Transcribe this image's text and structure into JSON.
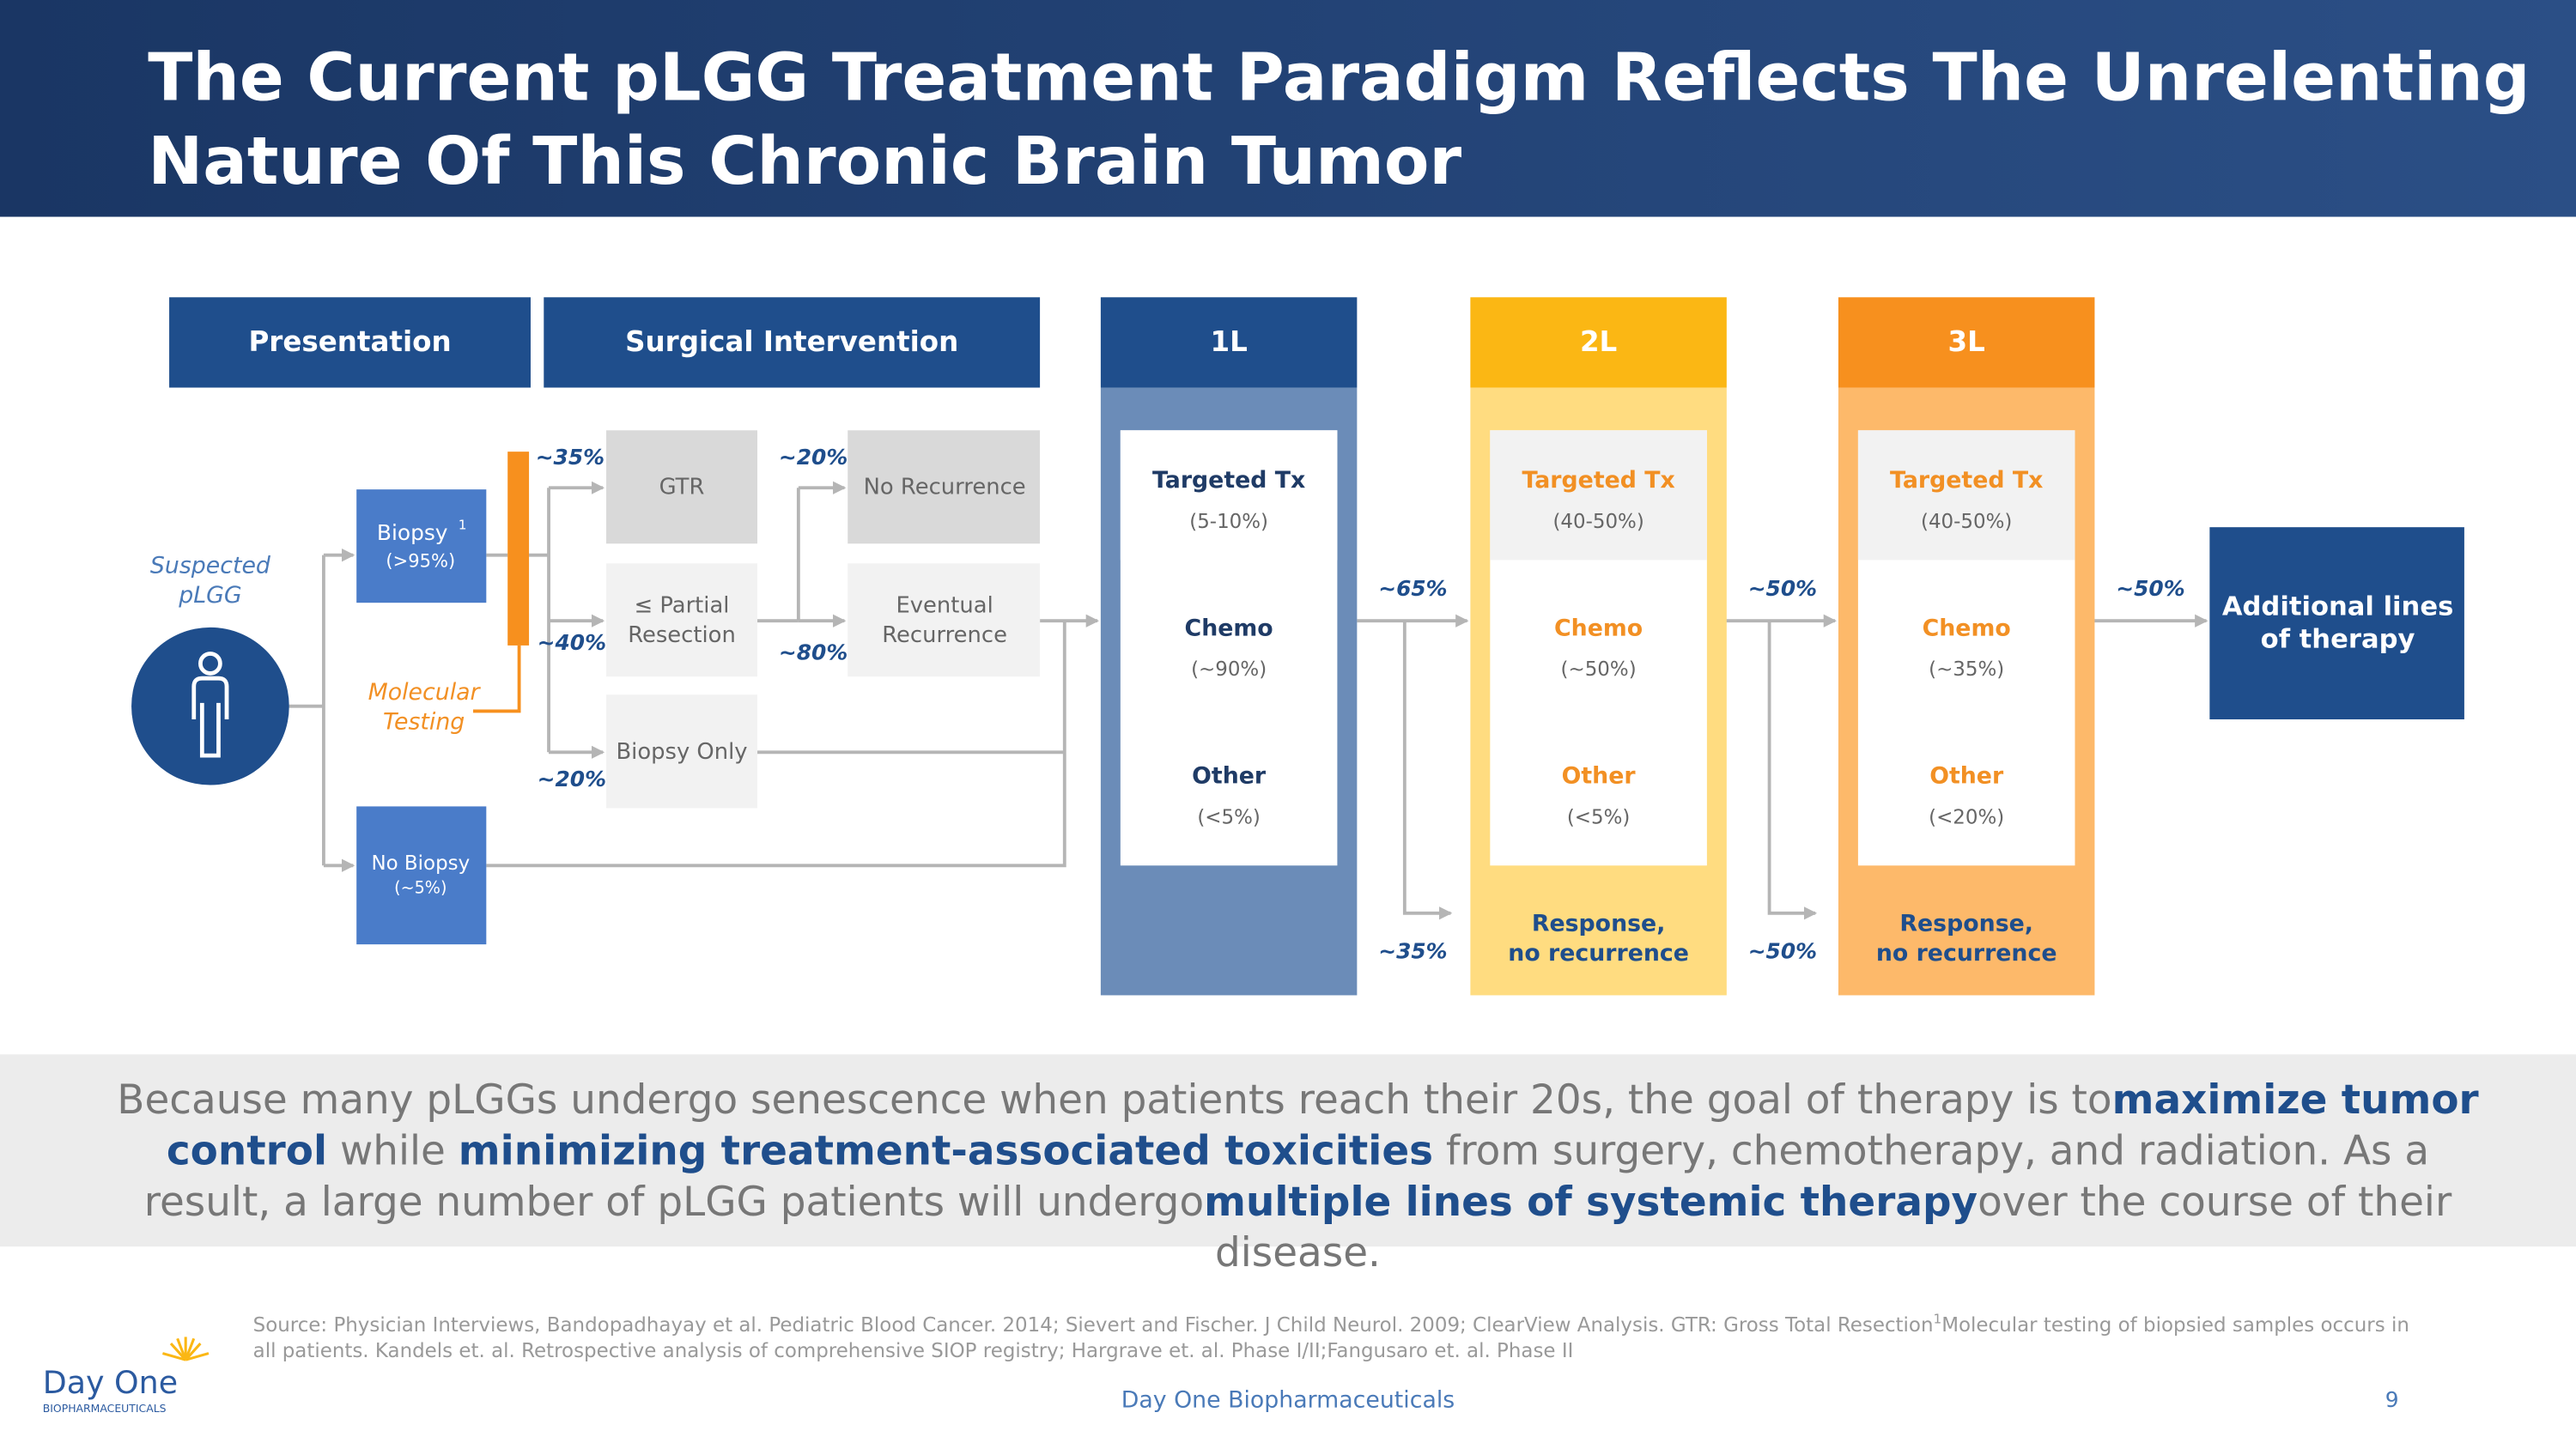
{
  "header": {
    "title_lines": [
      "The Current pLGG Treatment Paradigm Reflects The Unrelenting",
      "Nature Of This Chronic Brain Tumor"
    ]
  },
  "columns": {
    "presentation": "Presentation",
    "surgical": "Surgical Intervention"
  },
  "presentation": {
    "suspected": [
      "Suspected",
      "pLGG"
    ],
    "biopsy": {
      "label": "Biopsy",
      "footnote": "1",
      "share": "(>95%)"
    },
    "no_biopsy": {
      "label": "No Biopsy",
      "share": "(~5%)"
    },
    "molecular_testing": [
      "Molecular",
      "Testing"
    ]
  },
  "surgery": {
    "gtr": "GTR",
    "partial": [
      "≤ Partial",
      "Resection"
    ],
    "biopsy_only": "Biopsy Only",
    "no_recurrence": "No Recurrence",
    "eventual": [
      "Eventual",
      "Recurrence"
    ],
    "pct_gtr": "~35%",
    "pct_partial": "~40%",
    "pct_biopsy_only": "~20%",
    "pct_no_recurrence": "~20%",
    "pct_eventual": "~80%"
  },
  "lines": [
    {
      "header": "1L",
      "therapies": [
        {
          "name": "Targeted Tx",
          "share": "(5-10%)"
        },
        {
          "name": "Chemo",
          "share": "(~90%)"
        },
        {
          "name": "Other",
          "share": "(<5%)"
        }
      ],
      "pct_continue": "~65%",
      "pct_response": "~35%"
    },
    {
      "header": "2L",
      "therapies": [
        {
          "name": "Targeted Tx",
          "share": "(40-50%)"
        },
        {
          "name": "Chemo",
          "share": "(~50%)"
        },
        {
          "name": "Other",
          "share": "(<5%)"
        }
      ],
      "response": [
        "Response,",
        "no recurrence"
      ],
      "pct_continue": "~50%",
      "pct_response": "~50%"
    },
    {
      "header": "3L",
      "therapies": [
        {
          "name": "Targeted Tx",
          "share": "(40-50%)"
        },
        {
          "name": "Chemo",
          "share": "(~35%)"
        },
        {
          "name": "Other",
          "share": "(<20%)"
        }
      ],
      "response": [
        "Response,",
        "no recurrence"
      ],
      "pct_continue": "~50%"
    }
  ],
  "additional": [
    "Additional lines",
    "of therapy"
  ],
  "summary": [
    {
      "text": "Because many pLGGs undergo senescence when patients reach their 20s, the goal of therapy is to",
      "bold": false
    },
    {
      "text": "maximize tumor control",
      "bold": true
    },
    {
      "text": " while ",
      "bold": false
    },
    {
      "text": "minimizing treatment-associated toxicities",
      "bold": true
    },
    {
      "text": " from surgery, chemotherapy, and radiation.  As a result, a large number of pLGG patients will undergo",
      "bold": false
    },
    {
      "text": "multiple lines of systemic therapy",
      "bold": true
    },
    {
      "text": "over the course of their disease.",
      "bold": false
    }
  ],
  "source": {
    "line1": "Source: Physician Interviews, Bandopadhayay et al. Pediatric Blood Cancer. 2014; Sievert and Fischer. J Child Neurol. 2009; ClearView Analysis. GTR: Gross Total Resection",
    "footnote": "1",
    "line1_end": "Molecular testing of biopsied samples occurs in",
    "line2": "all patients. Kandels et. al. Retrospective analysis of comprehensive SIOP registry; Hargrave et. al. Phase I/II;Fangusaro et. al. Phase II"
  },
  "logo": {
    "name": "Day One",
    "sub": "BIOPHARMACEUTICALS"
  },
  "footer": {
    "company": "Day One Biopharmaceuticals",
    "page": "9"
  }
}
